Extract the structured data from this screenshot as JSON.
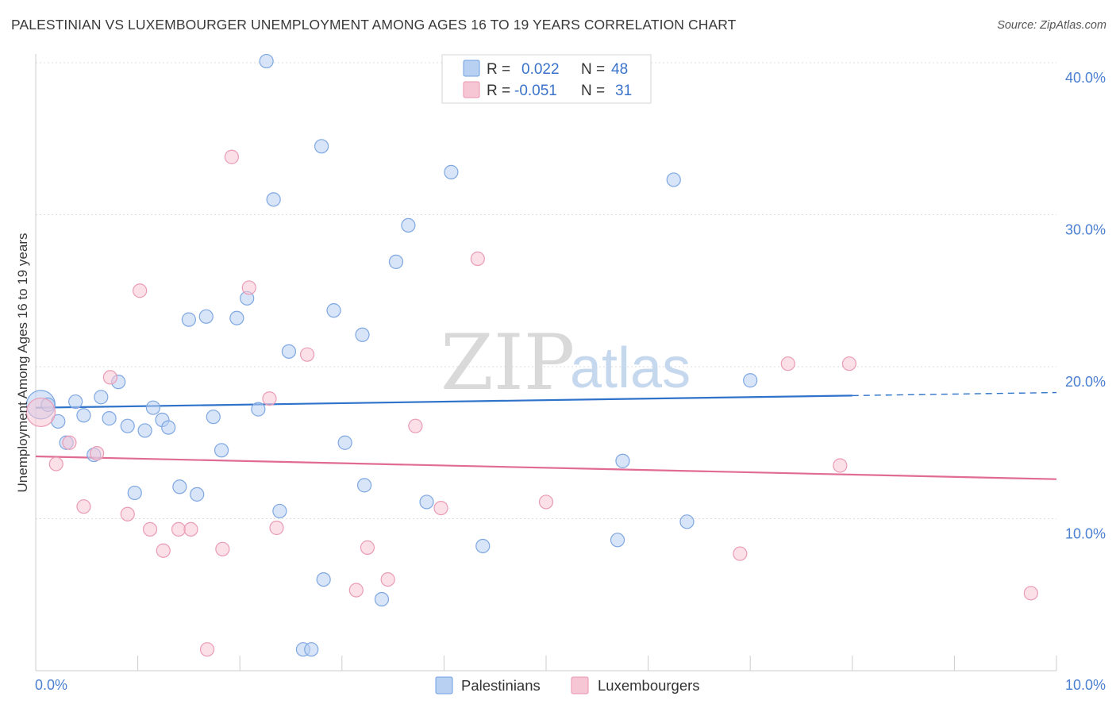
{
  "title": "PALESTINIAN VS LUXEMBOURGER UNEMPLOYMENT AMONG AGES 16 TO 19 YEARS CORRELATION CHART",
  "source": "Source: ZipAtlas.com",
  "watermark": {
    "zip": "ZIP",
    "atlas": "atlas"
  },
  "colors": {
    "blue": "#2f72c9",
    "blue_fill": "#b8d0f2",
    "pink": "#e06b94",
    "pink_fill": "#f7c6d5",
    "grid": "#dddddd",
    "tick_text": "#4a7fd1"
  },
  "legend": {
    "rows": [
      {
        "r_label": "R =",
        "r_value": "0.022",
        "n_label": "N =",
        "n_value": "48",
        "color": "blue"
      },
      {
        "r_label": "R =",
        "r_value": "-0.051",
        "n_label": "N =",
        "n_value": "31",
        "color": "pink"
      }
    ]
  },
  "bottom_legend": [
    {
      "label": "Palestinians",
      "color": "blue"
    },
    {
      "label": "Luxembourgers",
      "color": "pink"
    }
  ],
  "chart_data": {
    "type": "scatter",
    "title": "PALESTINIAN VS LUXEMBOURGER UNEMPLOYMENT AMONG AGES 16 TO 19 YEARS CORRELATION CHART",
    "xlabel": "",
    "ylabel": "Unemployment Among Ages 16 to 19 years",
    "xlim": [
      0,
      10
    ],
    "ylim": [
      0,
      40
    ],
    "x_tick_labels": [
      "0.0%",
      "10.0%"
    ],
    "y_ticks": [
      10,
      20,
      30,
      40
    ],
    "y_tick_labels": [
      "10.0%",
      "20.0%",
      "30.0%",
      "40.0%"
    ],
    "series": [
      {
        "name": "Palestinians",
        "color": "blue",
        "r": 0.022,
        "n": 48,
        "trend": {
          "x0": 0,
          "y0": 17.3,
          "x1": 8.0,
          "y1": 18.1,
          "dash_to_x": 10,
          "dash_to_y": 18.3
        },
        "points": [
          {
            "x": 0.05,
            "y": 17.5,
            "big": true
          },
          {
            "x": 0.12,
            "y": 17.5
          },
          {
            "x": 0.22,
            "y": 16.4
          },
          {
            "x": 0.3,
            "y": 15.0
          },
          {
            "x": 0.39,
            "y": 17.7
          },
          {
            "x": 0.47,
            "y": 16.8
          },
          {
            "x": 0.57,
            "y": 14.2
          },
          {
            "x": 0.64,
            "y": 18.0
          },
          {
            "x": 0.72,
            "y": 16.6
          },
          {
            "x": 0.81,
            "y": 19.0
          },
          {
            "x": 0.9,
            "y": 16.1
          },
          {
            "x": 0.97,
            "y": 11.7
          },
          {
            "x": 1.07,
            "y": 15.8
          },
          {
            "x": 1.15,
            "y": 17.3
          },
          {
            "x": 1.24,
            "y": 16.5
          },
          {
            "x": 1.3,
            "y": 16.0
          },
          {
            "x": 1.41,
            "y": 12.1
          },
          {
            "x": 1.5,
            "y": 23.1
          },
          {
            "x": 1.58,
            "y": 11.6
          },
          {
            "x": 1.67,
            "y": 23.3
          },
          {
            "x": 1.74,
            "y": 16.7
          },
          {
            "x": 1.82,
            "y": 14.5
          },
          {
            "x": 1.97,
            "y": 23.2
          },
          {
            "x": 2.07,
            "y": 24.5
          },
          {
            "x": 2.18,
            "y": 17.2
          },
          {
            "x": 2.26,
            "y": 40.1
          },
          {
            "x": 2.33,
            "y": 31.0
          },
          {
            "x": 2.39,
            "y": 10.5
          },
          {
            "x": 2.48,
            "y": 21.0
          },
          {
            "x": 2.62,
            "y": 1.4
          },
          {
            "x": 2.7,
            "y": 1.4
          },
          {
            "x": 2.8,
            "y": 34.5
          },
          {
            "x": 2.82,
            "y": 6.0
          },
          {
            "x": 2.92,
            "y": 23.7
          },
          {
            "x": 3.03,
            "y": 15.0
          },
          {
            "x": 3.2,
            "y": 22.1
          },
          {
            "x": 3.22,
            "y": 12.2
          },
          {
            "x": 3.39,
            "y": 4.7
          },
          {
            "x": 3.53,
            "y": 26.9
          },
          {
            "x": 3.65,
            "y": 29.3
          },
          {
            "x": 3.83,
            "y": 11.1
          },
          {
            "x": 4.07,
            "y": 32.8
          },
          {
            "x": 4.38,
            "y": 8.2
          },
          {
            "x": 5.7,
            "y": 8.6
          },
          {
            "x": 5.75,
            "y": 13.8
          },
          {
            "x": 6.25,
            "y": 32.3
          },
          {
            "x": 6.38,
            "y": 9.8
          },
          {
            "x": 7.0,
            "y": 19.1
          }
        ]
      },
      {
        "name": "Luxembourgers",
        "color": "pink",
        "r": -0.051,
        "n": 31,
        "trend": {
          "x0": 0,
          "y0": 14.1,
          "x1": 10,
          "y1": 12.6
        },
        "points": [
          {
            "x": 0.05,
            "y": 17.0,
            "big": true
          },
          {
            "x": 0.2,
            "y": 13.6
          },
          {
            "x": 0.33,
            "y": 15.0
          },
          {
            "x": 0.47,
            "y": 10.8
          },
          {
            "x": 0.6,
            "y": 14.3
          },
          {
            "x": 0.73,
            "y": 19.3
          },
          {
            "x": 0.9,
            "y": 10.3
          },
          {
            "x": 1.02,
            "y": 25.0
          },
          {
            "x": 1.12,
            "y": 9.3
          },
          {
            "x": 1.25,
            "y": 7.9
          },
          {
            "x": 1.4,
            "y": 9.3
          },
          {
            "x": 1.52,
            "y": 9.3
          },
          {
            "x": 1.68,
            "y": 1.4
          },
          {
            "x": 1.83,
            "y": 8.0
          },
          {
            "x": 1.92,
            "y": 33.8
          },
          {
            "x": 2.09,
            "y": 25.2
          },
          {
            "x": 2.29,
            "y": 17.9
          },
          {
            "x": 2.36,
            "y": 9.4
          },
          {
            "x": 2.66,
            "y": 20.8
          },
          {
            "x": 3.14,
            "y": 5.3
          },
          {
            "x": 3.25,
            "y": 8.1
          },
          {
            "x": 3.45,
            "y": 6.0
          },
          {
            "x": 3.72,
            "y": 16.1
          },
          {
            "x": 3.97,
            "y": 10.7
          },
          {
            "x": 4.33,
            "y": 27.1
          },
          {
            "x": 5.0,
            "y": 11.1
          },
          {
            "x": 6.9,
            "y": 7.7
          },
          {
            "x": 7.37,
            "y": 20.2
          },
          {
            "x": 7.88,
            "y": 13.5
          },
          {
            "x": 7.97,
            "y": 20.2
          },
          {
            "x": 9.75,
            "y": 5.1
          }
        ]
      }
    ]
  }
}
